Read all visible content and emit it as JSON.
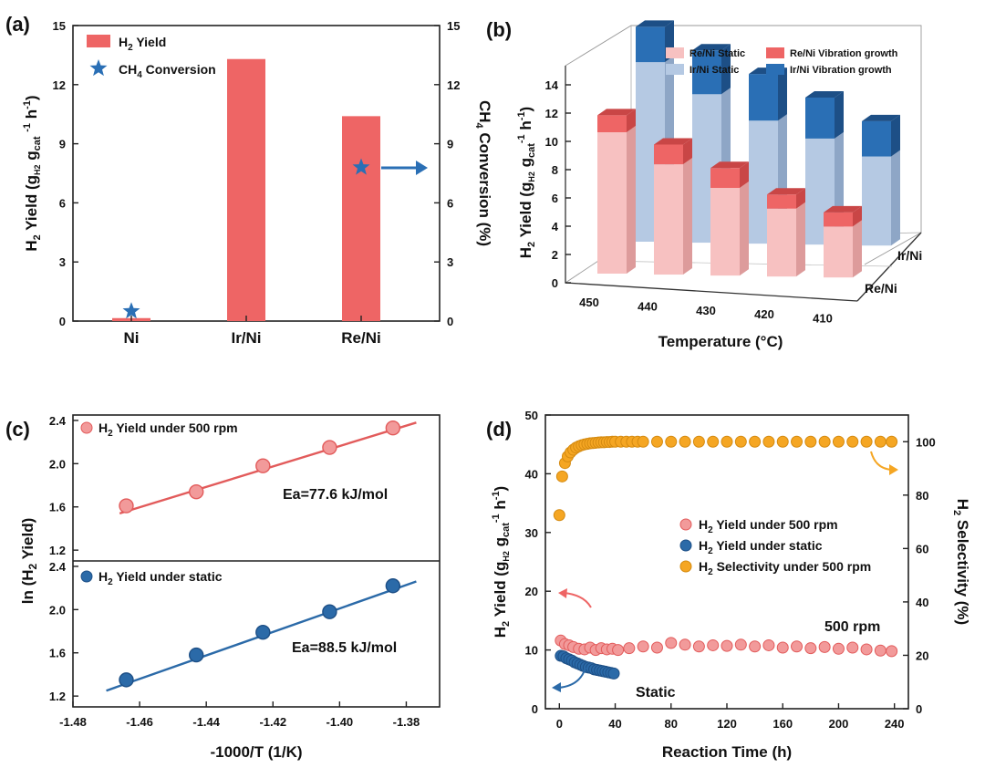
{
  "colors": {
    "red": "#ee6565",
    "redDark": "#c94646",
    "pink": "#f7c1c1",
    "pinkDark": "#dd9b9b",
    "blue": "#2a6fb5",
    "blueDark": "#1d4f86",
    "lightBlue": "#b5c9e3",
    "lightBlueDark": "#8ea6c6",
    "orange": "#f5a623",
    "lineRed": "#e25b5b",
    "lineBlue": "#2b6aa8"
  },
  "chart_data": [
    {
      "panel": "(a)",
      "type": "bar",
      "categories": [
        "Ni",
        "Ir/Ni",
        "Re/Ni"
      ],
      "series": [
        {
          "name": "H2 Yield",
          "legend_main": "H",
          "legend_sub": "2",
          "legend_rest": " Yield",
          "axis": "left",
          "values": [
            0.15,
            13.3,
            10.4
          ]
        },
        {
          "name": "CH4 Conversion",
          "legend_main": "CH",
          "legend_sub": "4",
          "legend_rest": " Conversion",
          "axis": "right",
          "points": [
            {
              "x": "Ni",
              "y": 0.5
            },
            {
              "x": "Re/Ni",
              "y": 7.8
            }
          ]
        }
      ],
      "ylim": [
        0,
        15
      ],
      "yticks": [
        "0",
        "3",
        "6",
        "9",
        "12",
        "15"
      ],
      "ylabel_left": {
        "a": "H",
        "b": "2",
        "c": " Yield (g",
        "d": "H2",
        "e": " g",
        "f": "cat",
        "g": " ",
        "h": "-1",
        "i": " h",
        "j": "-1",
        "k": ")"
      },
      "ylabel_right": {
        "a": "CH",
        "b": "4",
        "c": " Conversion (%)"
      }
    },
    {
      "panel": "(b)",
      "type": "bar",
      "categories": [
        "450",
        "440",
        "430",
        "420",
        "410"
      ],
      "rows": [
        "Re/Ni",
        "Ir/Ni"
      ],
      "series": [
        {
          "name": "Re/Ni Static",
          "row": "Re/Ni",
          "values": [
            10.0,
            7.8,
            6.2,
            4.8,
            3.6
          ]
        },
        {
          "name": "Re/Ni Vibration growth",
          "row": "Re/Ni",
          "values": [
            11.2,
            9.2,
            7.6,
            5.8,
            4.6
          ]
        },
        {
          "name": "Ir/Ni Static",
          "row": "Ir/Ni",
          "values": [
            12.7,
            10.5,
            8.7,
            7.5,
            6.3
          ]
        },
        {
          "name": "Ir/Ni Vibration growth",
          "row": "Ir/Ni",
          "values": [
            15.2,
            13.6,
            12.0,
            10.4,
            8.8
          ]
        }
      ],
      "zlim": [
        0,
        14
      ],
      "zticks": [
        "0",
        "2",
        "4",
        "6",
        "8",
        "10",
        "12",
        "14"
      ],
      "xlabel": "Temperature (°C)",
      "ylabel": {
        "a": "H",
        "b": "2",
        "c": " Yield (g",
        "d": "H2",
        "e": " g",
        "f": "cat",
        "g": "-1",
        "h": " h",
        "i": "-1",
        "j": ")"
      }
    },
    {
      "panel": "(c)",
      "type": "scatter",
      "xlim": [
        -1.48,
        -1.37
      ],
      "xticks": [
        "-1.48",
        "-1.46",
        "-1.44",
        "-1.42",
        "-1.40",
        "-1.38"
      ],
      "xlabel": "-1000/T (1/K)",
      "ylabel": "ln (H",
      "ylabel_sub": "2",
      "ylabel_rest": " Yield)",
      "series": [
        {
          "name": "H2 Yield under 500 rpm",
          "legend_main": "H",
          "legend_sub": "2",
          "legend_rest": " Yield under 500 rpm",
          "x": [
            -1.464,
            -1.443,
            -1.423,
            -1.403,
            -1.384
          ],
          "y": [
            1.61,
            1.74,
            1.98,
            2.15,
            2.33
          ],
          "fit": {
            "x": [
              -1.466,
              -1.377
            ],
            "y": [
              1.54,
              2.38
            ]
          },
          "annotation": "Ea=77.6 kJ/mol",
          "ylim": [
            1.1,
            2.45
          ],
          "yticks": [
            "1.2",
            "1.6",
            "2.0",
            "2.4"
          ]
        },
        {
          "name": "H2 Yield under static",
          "legend_main": "H",
          "legend_sub": "2",
          "legend_rest": " Yield under static",
          "x": [
            -1.464,
            -1.443,
            -1.423,
            -1.403,
            -1.384
          ],
          "y": [
            1.35,
            1.58,
            1.79,
            1.98,
            2.22
          ],
          "fit": {
            "x": [
              -1.47,
              -1.377
            ],
            "y": [
              1.25,
              2.26
            ]
          },
          "annotation": "Ea=88.5 kJ/mol",
          "ylim": [
            1.1,
            2.45
          ],
          "yticks": [
            "1.2",
            "1.6",
            "2.0",
            "2.4"
          ]
        }
      ]
    },
    {
      "panel": "(d)",
      "type": "scatter",
      "xlim": [
        -10,
        250
      ],
      "xticks": [
        "0",
        "40",
        "80",
        "120",
        "160",
        "200",
        "240"
      ],
      "xlabel": "Reaction Time (h)",
      "ylim_left": [
        0,
        50
      ],
      "yticks_left": [
        "0",
        "10",
        "20",
        "30",
        "40",
        "50"
      ],
      "ylim_right": [
        0,
        110
      ],
      "yticks_right": [
        "0",
        "20",
        "40",
        "60",
        "80",
        "100"
      ],
      "ylabel_left": {
        "a": "H",
        "b": "2",
        "c": " Yield (g",
        "d": "H2",
        "e": " g",
        "f": "cat",
        "g": "-1",
        "h": " h",
        "i": "-1",
        "j": ")"
      },
      "ylabel_right": {
        "a": "H",
        "b": "2",
        "c": " Selectivity (%)"
      },
      "series": [
        {
          "name": "H2 Yield under 500 rpm",
          "legend_main": "H",
          "legend_sub": "2",
          "legend_rest": " Yield under 500 rpm",
          "axis": "left",
          "x": [
            1,
            4,
            7,
            10,
            14,
            18,
            22,
            26,
            30,
            34,
            38,
            42,
            50,
            60,
            70,
            80,
            90,
            100,
            110,
            120,
            130,
            140,
            150,
            160,
            170,
            180,
            190,
            200,
            210,
            220,
            230,
            238
          ],
          "y": [
            11.6,
            11.0,
            10.8,
            10.5,
            10.2,
            10.1,
            10.4,
            10.0,
            10.3,
            10.1,
            10.2,
            10.0,
            10.3,
            10.6,
            10.4,
            11.2,
            10.9,
            10.6,
            10.8,
            10.7,
            10.9,
            10.6,
            10.8,
            10.4,
            10.6,
            10.3,
            10.5,
            10.2,
            10.4,
            10.1,
            9.9,
            9.8
          ],
          "annotation": "500 rpm"
        },
        {
          "name": "H2 Yield under static",
          "legend_main": "H",
          "legend_sub": "2",
          "legend_rest": " Yield under static",
          "axis": "left",
          "x": [
            1,
            3,
            5,
            7,
            9,
            11,
            13,
            15,
            17,
            19,
            21,
            23,
            25,
            27,
            29,
            31,
            33,
            35,
            37,
            39
          ],
          "y": [
            9.0,
            8.9,
            8.6,
            8.4,
            8.2,
            7.9,
            7.7,
            7.5,
            7.3,
            7.1,
            7.0,
            6.9,
            6.7,
            6.6,
            6.5,
            6.4,
            6.3,
            6.2,
            6.1,
            6.0
          ],
          "annotation": "Static"
        },
        {
          "name": "H2 Selectivity under 500 rpm",
          "legend_main": "H",
          "legend_sub": "2",
          "legend_rest": " Selectivity under 500 rpm",
          "axis": "right",
          "x": [
            0,
            2,
            4,
            6,
            8,
            10,
            12,
            14,
            16,
            18,
            20,
            22,
            24,
            26,
            28,
            30,
            32,
            34,
            36,
            38,
            40,
            44,
            48,
            52,
            56,
            60,
            70,
            80,
            90,
            100,
            110,
            120,
            130,
            140,
            150,
            160,
            170,
            180,
            190,
            200,
            210,
            220,
            230,
            238
          ],
          "y": [
            72.5,
            87.0,
            92.0,
            94.5,
            96.0,
            97.0,
            97.8,
            98.3,
            98.7,
            99.0,
            99.2,
            99.4,
            99.5,
            99.6,
            99.7,
            99.8,
            99.8,
            99.9,
            99.9,
            100,
            100,
            100,
            100,
            100,
            100,
            100,
            100,
            100,
            100,
            100,
            100,
            100,
            100,
            100,
            100,
            100,
            100,
            100,
            100,
            100,
            100,
            100,
            100,
            100
          ]
        }
      ]
    }
  ]
}
